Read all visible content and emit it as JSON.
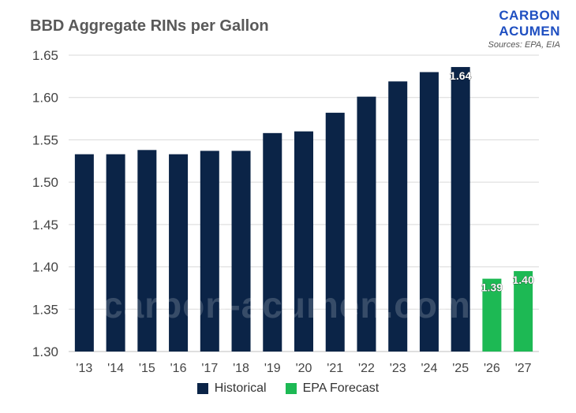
{
  "header": {
    "title": "BBD Aggregate RINs per Gallon",
    "brand_line1": "CARBON",
    "brand_line2": "ACUMEN",
    "source": "Sources: EPA, EIA",
    "watermark": "carbon-acumen.com"
  },
  "colors": {
    "historical": "#0b2447",
    "forecast": "#1db954",
    "grid": "#d9d9d9",
    "brand": "#1f4fc1"
  },
  "chart_data": {
    "type": "bar",
    "title": "BBD Aggregate RINs per Gallon",
    "xlabel": "",
    "ylabel": "",
    "ylim": [
      1.3,
      1.65
    ],
    "yticks": [
      "1.30",
      "1.35",
      "1.40",
      "1.45",
      "1.50",
      "1.55",
      "1.60",
      "1.65"
    ],
    "categories": [
      "'13",
      "'14",
      "'15",
      "'16",
      "'17",
      "'18",
      "'19",
      "'20",
      "'21",
      "'22",
      "'23",
      "'24",
      "'25",
      "'26",
      "'27"
    ],
    "series": [
      {
        "name": "Historical",
        "values": [
          1.533,
          1.533,
          1.538,
          1.533,
          1.537,
          1.537,
          1.558,
          1.56,
          1.582,
          1.601,
          1.619,
          1.63,
          1.636,
          null,
          null
        ]
      },
      {
        "name": "EPA Forecast",
        "values": [
          null,
          null,
          null,
          null,
          null,
          null,
          null,
          null,
          null,
          null,
          null,
          null,
          null,
          1.386,
          1.395
        ]
      }
    ],
    "data_labels": [
      {
        "category": "'25",
        "text": "1.64"
      },
      {
        "category": "'26",
        "text": "1.39"
      },
      {
        "category": "'27",
        "text": "1.40"
      }
    ],
    "grid": true,
    "legend": "bottom-center"
  }
}
